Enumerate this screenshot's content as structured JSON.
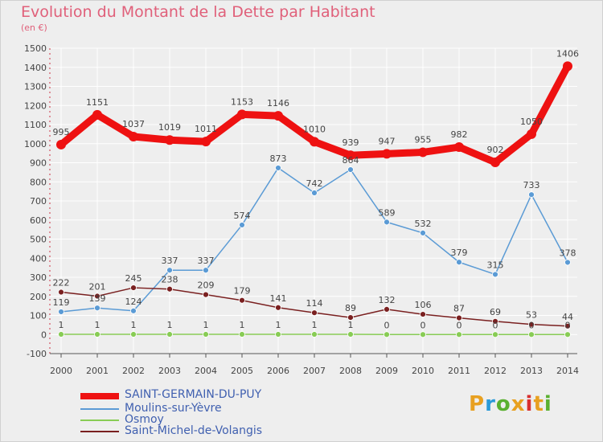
{
  "header": {
    "title": "Evolution du Montant de la Dette par Habitant",
    "unit": "(en €)"
  },
  "colors": {
    "background": "#eeeeee",
    "title": "#e0607a",
    "axis": "#555555",
    "grid": "#ffffff"
  },
  "logo": {
    "letters": [
      "P",
      "r",
      "o",
      "x",
      "i",
      "t",
      "i"
    ],
    "colors": [
      "#e8a020",
      "#2a9ad8",
      "#5ab030",
      "#e8a020",
      "#d83030",
      "#e8a020",
      "#5ab030"
    ]
  },
  "chart_data": {
    "type": "line",
    "title": "Evolution du Montant de la Dette par Habitant",
    "subtitle": "(en €)",
    "categories": [
      "2000",
      "2001",
      "2002",
      "2003",
      "2004",
      "2005",
      "2006",
      "2007",
      "2008",
      "2009",
      "2010",
      "2011",
      "2012",
      "2013",
      "2014"
    ],
    "ylim": [
      -100,
      1500
    ],
    "yticks": [
      -100,
      0,
      100,
      200,
      300,
      400,
      500,
      600,
      700,
      800,
      900,
      1000,
      1100,
      1200,
      1300,
      1400,
      1500
    ],
    "grid": true,
    "legend_position": "bottom-left",
    "series": [
      {
        "name": "SAINT-GERMAIN-DU-PUY",
        "color": "#ee1111",
        "values": [
          995,
          1151,
          1037,
          1019,
          1011,
          1153,
          1146,
          1010,
          939,
          947,
          955,
          982,
          902,
          1050,
          1406
        ]
      },
      {
        "name": "Moulins-sur-Yèvre",
        "color": "#5b9bd5",
        "values": [
          119,
          139,
          124,
          337,
          337,
          574,
          873,
          742,
          864,
          589,
          532,
          379,
          315,
          733,
          378
        ]
      },
      {
        "name": "Osmoy",
        "color": "#88cc55",
        "values": [
          1,
          1,
          1,
          1,
          1,
          1,
          1,
          1,
          1,
          0,
          0,
          0,
          0,
          0,
          0
        ]
      },
      {
        "name": "Saint-Michel-de-Volangis",
        "color": "#7a2020",
        "values": [
          222,
          201,
          245,
          238,
          209,
          179,
          141,
          114,
          89,
          132,
          106,
          87,
          69,
          53,
          44
        ]
      }
    ],
    "value_labels": [
      [
        "995",
        "1151",
        "1037",
        "1019",
        "1011",
        "1153",
        "1146",
        "1010",
        "939",
        "947",
        "955",
        "982",
        "902",
        "1050",
        "1406"
      ],
      [
        "119",
        "139",
        "124",
        "337",
        "337",
        "574",
        "873",
        "742",
        "864",
        "589",
        "532",
        "379",
        "315",
        "733",
        "378"
      ],
      [
        "1",
        "1",
        "1",
        "1",
        "1",
        "1",
        "1",
        "1",
        "1",
        "0",
        "0",
        "0",
        "0",
        "0",
        "0"
      ],
      [
        "222",
        "201",
        "245",
        "238",
        "209",
        "179",
        "141",
        "114",
        "89",
        "132",
        "106",
        "87",
        "69",
        "53",
        "44"
      ]
    ]
  }
}
